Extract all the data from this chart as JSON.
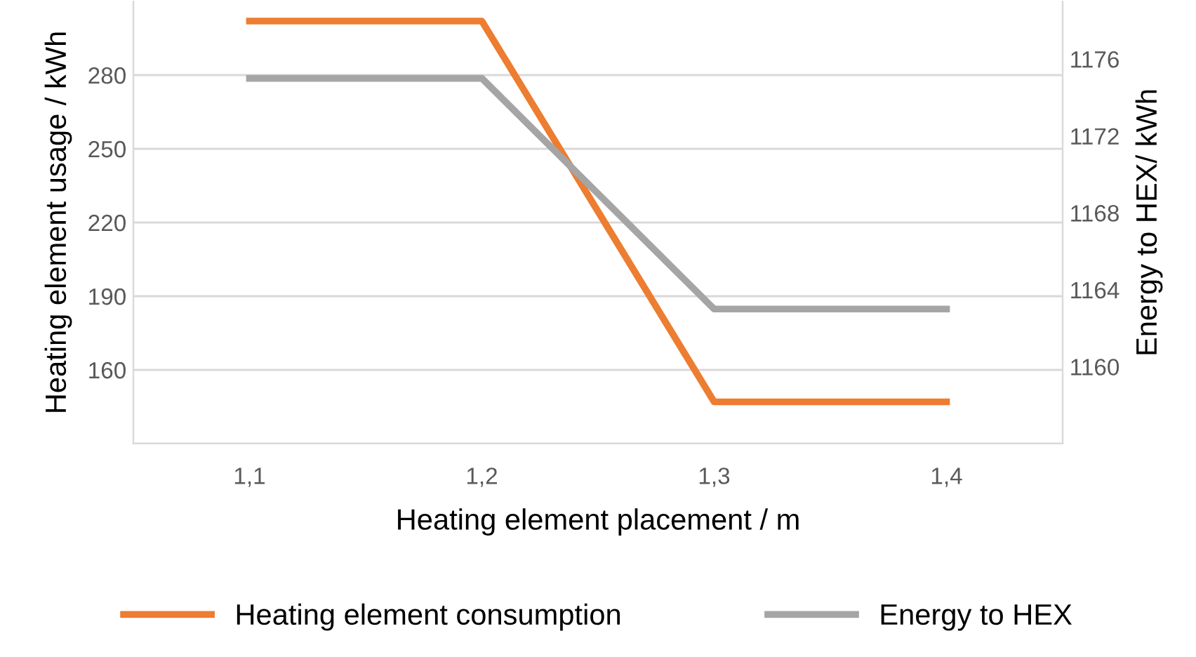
{
  "chart_data": {
    "type": "line",
    "xlabel": "Heating element placement / m",
    "ylabel": "Heating element usage / kWh",
    "y2label": "Energy to HEX/ kWh",
    "categories": [
      "1,1",
      "1,2",
      "1,3",
      "1,4"
    ],
    "series": [
      {
        "name": "Heating element consumption",
        "color": "#ed7d31",
        "values": [
          302,
          302,
          147,
          147
        ]
      },
      {
        "name": "Energy to HEX",
        "color": "#a5a5a5",
        "values": [
          1175,
          1175,
          1163,
          1163
        ],
        "axis": "y2"
      }
    ],
    "ylim": [
      130,
      310
    ],
    "yticks": [
      {
        "value": 130,
        "label": null
      },
      160,
      190,
      220,
      250,
      280
    ],
    "y2lim": [
      1156,
      1179
    ],
    "y2ticks": [
      {
        "value": 1156,
        "label": null
      },
      1160,
      1164,
      1168,
      1172,
      1176
    ],
    "grid": "y",
    "legend": "bottom",
    "marker": "none",
    "line_style": "solid"
  }
}
